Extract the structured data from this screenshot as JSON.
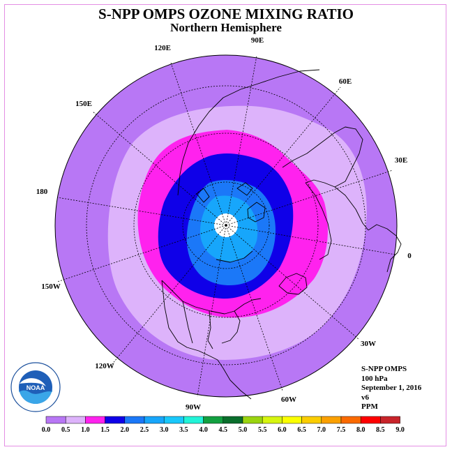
{
  "title": "S-NPP OMPS OZONE MIXING RATIO",
  "subtitle": "Northern Hemisphere",
  "longitude_labels": [
    "90E",
    "60E",
    "30E",
    "0",
    "30W",
    "60W",
    "90W",
    "120W",
    "150W",
    "180",
    "150E",
    "120E"
  ],
  "info": {
    "instrument": "S-NPP OMPS",
    "level": "100 hPa",
    "date": "September 1, 2016",
    "version": "v6",
    "units": "PPM"
  },
  "logo": {
    "text": "NOAA",
    "icon": "noaa-logo"
  },
  "colorbar": {
    "ticks": [
      "0.0",
      "0.5",
      "1.0",
      "1.5",
      "2.0",
      "2.5",
      "3.0",
      "3.5",
      "4.0",
      "4.5",
      "5.0",
      "5.5",
      "6.0",
      "6.5",
      "7.0",
      "7.5",
      "8.0",
      "8.5",
      "9.0"
    ],
    "colors": [
      "#b877f5",
      "#ddb3fb",
      "#ff22ee",
      "#0f00e8",
      "#1b78f8",
      "#17a6fb",
      "#19c8fb",
      "#22f4d8",
      "#12a040",
      "#0a6e2c",
      "#9ad40f",
      "#d6f50f",
      "#fbff00",
      "#fbcd00",
      "#fba000",
      "#fb6a00",
      "#ff0000",
      "#c8242a"
    ]
  }
}
